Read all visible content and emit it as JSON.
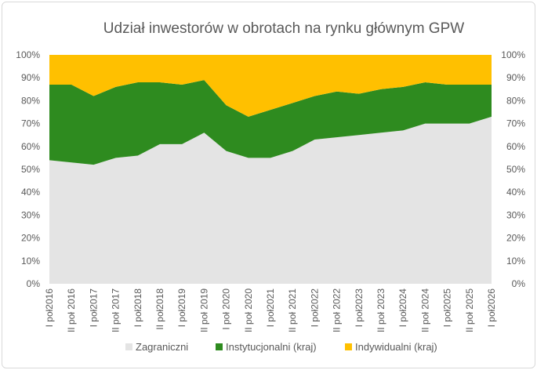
{
  "chart_data": {
    "type": "area",
    "stacked": true,
    "title": "Udział inwestorów w obrotach na rynku głównym GPW",
    "categories": [
      "I poł2016",
      "II poł 2016",
      "I poł2017",
      "II poł 2017",
      "I poł2018",
      "II poł2018",
      "I poł2019",
      "II poł 2019",
      "I poł 2020",
      "II poł 2020",
      "I poł2021",
      "II poł 2021",
      "I poł2022",
      "II poł 2022",
      "I poł2023",
      "II poł 2023",
      "I poł2024",
      "II poł 2024",
      "I poł2025",
      "II poł 2025",
      "I poł2026"
    ],
    "ylim": [
      0,
      100
    ],
    "yticks": [
      "0%",
      "10%",
      "20%",
      "30%",
      "40%",
      "50%",
      "60%",
      "70%",
      "80%",
      "90%",
      "100%"
    ],
    "secondary_yticks": [
      "0%",
      "10%",
      "20%",
      "30%",
      "40%",
      "50%",
      "60%",
      "70%",
      "80%",
      "90%",
      "100%"
    ],
    "series": [
      {
        "name": "Zagraniczni",
        "color": "#e4e4e4",
        "values": [
          54,
          53,
          52,
          55,
          56,
          61,
          61,
          66,
          58,
          55,
          55,
          58,
          63,
          64,
          65,
          66,
          67,
          70,
          70,
          70,
          73
        ]
      },
      {
        "name": "Instytucjonalni (kraj)",
        "color": "#2e8b1f",
        "values": [
          33,
          34,
          30,
          31,
          32,
          27,
          26,
          23,
          20,
          18,
          21,
          21,
          19,
          20,
          18,
          19,
          19,
          18,
          17,
          17,
          14
        ]
      },
      {
        "name": "Indywidualni (kraj)",
        "color": "#ffc000",
        "values": [
          13,
          13,
          18,
          14,
          12,
          12,
          13,
          11,
          22,
          27,
          24,
          21,
          18,
          16,
          17,
          15,
          14,
          12,
          13,
          13,
          13
        ]
      }
    ],
    "legend_position": "bottom",
    "grid": false
  }
}
